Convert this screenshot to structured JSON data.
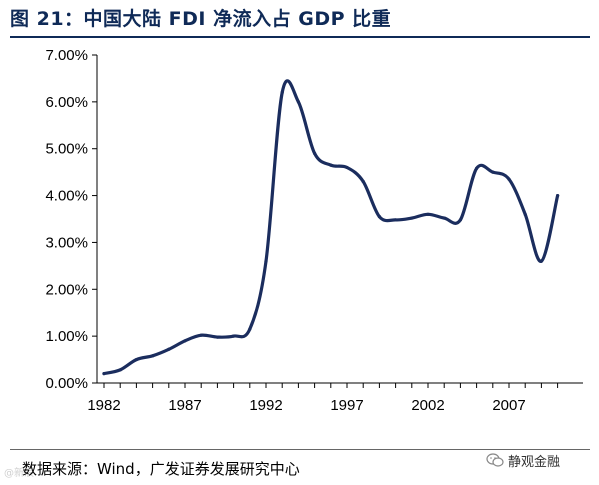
{
  "header": {
    "title": "图 21：中国大陆 FDI 净流入占 GDP 比重"
  },
  "footer": {
    "source": "数据来源：Wind，广发证券发展研究中心",
    "watermark": "@新浪",
    "account": "静观金融"
  },
  "chart_data": {
    "type": "line",
    "title": "图 21：中国大陆 FDI 净流入占 GDP 比重",
    "xlabel": "",
    "ylabel": "",
    "xlim": [
      1982,
      2010
    ],
    "ylim": [
      0,
      7
    ],
    "x_ticks": [
      "1982",
      "1987",
      "1992",
      "1997",
      "2002",
      "2007"
    ],
    "y_ticks": [
      "0.00%",
      "1.00%",
      "2.00%",
      "3.00%",
      "4.00%",
      "5.00%",
      "6.00%",
      "7.00%"
    ],
    "grid": false,
    "legend": "none",
    "colors": {
      "line": "#1b2d5e",
      "axis": "#000000"
    },
    "series": [
      {
        "x": [
          1982,
          1983,
          1984,
          1985,
          1986,
          1987,
          1988,
          1989,
          1990,
          1991,
          1992,
          1993,
          1994,
          1995,
          1996,
          1997,
          1998,
          1999,
          2000,
          2001,
          2002,
          2003,
          2004,
          2005,
          2006,
          2007,
          2008,
          2009,
          2010
        ],
        "values": [
          0.2,
          0.28,
          0.5,
          0.58,
          0.72,
          0.9,
          1.02,
          0.98,
          1.0,
          1.15,
          2.6,
          6.2,
          6.0,
          4.9,
          4.65,
          4.6,
          4.3,
          3.55,
          3.48,
          3.52,
          3.6,
          3.52,
          3.48,
          4.58,
          4.5,
          4.35,
          3.6,
          2.6,
          4.0
        ]
      }
    ]
  }
}
